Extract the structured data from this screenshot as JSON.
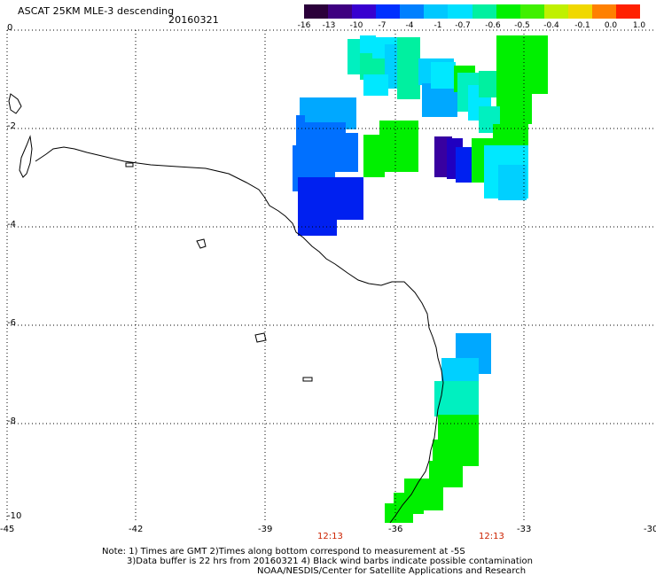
{
  "header": {
    "title": "ASCAT 25KM MLE-3 descending",
    "date": "20160321"
  },
  "colorbar": {
    "colors": [
      "#2b003a",
      "#3e0080",
      "#3800d0",
      "#0030ff",
      "#0080ff",
      "#00c8ff",
      "#00e0ff",
      "#00f0a0",
      "#00f000",
      "#40f000",
      "#c0f000",
      "#f0d800",
      "#ff8000",
      "#ff2000"
    ],
    "labels": [
      "-16",
      "-13",
      "-10",
      "-7",
      "-4",
      "-1",
      "-0.7",
      "-0.6",
      "-0.5",
      "-0.4",
      "-0.1",
      "0.0",
      "1.0"
    ]
  },
  "axes": {
    "x_labels": [
      "-45",
      "-42",
      "-39",
      "-36",
      "-33",
      "-30"
    ],
    "y_labels": [
      "0",
      "-2",
      "-4",
      "-6",
      "-8",
      "-10"
    ]
  },
  "times": [
    "12:13",
    "12:13"
  ],
  "notes": {
    "line1": "Note: 1) Times are GMT 2)Times along bottom correspond to measurement at -5S",
    "line2": "3)Data buffer is 22 hrs from 20160321 4) Black wind barbs indicate possible contamination",
    "line3": "NOAA/NESDIS/Center for Satellite Applications and Research"
  }
}
